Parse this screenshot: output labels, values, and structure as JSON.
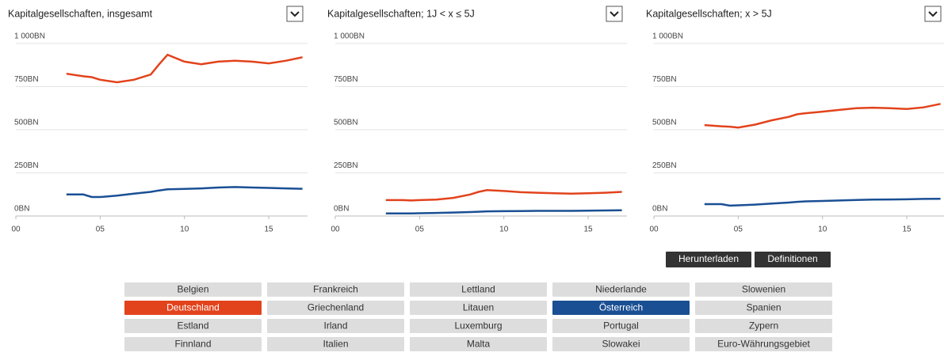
{
  "chart_data": [
    {
      "type": "line",
      "title": "Kapitalgesellschaften, insgesamt",
      "x": [
        2003,
        2004,
        2004.5,
        2005,
        2006,
        2007,
        2008,
        2008.5,
        2009,
        2010,
        2011,
        2012,
        2013,
        2014,
        2015,
        2016,
        2017
      ],
      "xlim": [
        2000,
        2017.3
      ],
      "xticks": [
        {
          "value": 2000,
          "label": "00"
        },
        {
          "value": 2005,
          "label": "05"
        },
        {
          "value": 2010,
          "label": "10"
        },
        {
          "value": 2015,
          "label": "15"
        }
      ],
      "ylim": [
        0,
        1000
      ],
      "yticks": [
        {
          "value": 0,
          "label": "0BN"
        },
        {
          "value": 250,
          "label": "250BN"
        },
        {
          "value": 500,
          "label": "500BN"
        },
        {
          "value": 750,
          "label": "750BN"
        },
        {
          "value": 1000,
          "label": "1 000BN"
        }
      ],
      "grid": true,
      "series": [
        {
          "color": "#e2431c",
          "values": [
            825,
            810,
            805,
            790,
            775,
            790,
            820,
            880,
            935,
            895,
            880,
            895,
            900,
            895,
            885,
            900,
            920
          ]
        },
        {
          "color": "#1a4f94",
          "values": [
            125,
            125,
            110,
            110,
            118,
            130,
            140,
            148,
            155,
            157,
            160,
            165,
            168,
            165,
            163,
            160,
            158
          ]
        }
      ]
    },
    {
      "type": "line",
      "title": "Kapitalgesellschaften; 1J < x ≤ 5J",
      "x": [
        2003,
        2004,
        2004.5,
        2005,
        2006,
        2007,
        2008,
        2008.5,
        2009,
        2010,
        2011,
        2012,
        2013,
        2014,
        2015,
        2016,
        2017
      ],
      "xlim": [
        2000,
        2017.3
      ],
      "xticks": [
        {
          "value": 2000,
          "label": "00"
        },
        {
          "value": 2005,
          "label": "05"
        },
        {
          "value": 2010,
          "label": "10"
        },
        {
          "value": 2015,
          "label": "15"
        }
      ],
      "ylim": [
        0,
        1000
      ],
      "yticks": [
        {
          "value": 0,
          "label": "0BN"
        },
        {
          "value": 250,
          "label": "250BN"
        },
        {
          "value": 500,
          "label": "500BN"
        },
        {
          "value": 750,
          "label": "750BN"
        },
        {
          "value": 1000,
          "label": "1 000BN"
        }
      ],
      "grid": true,
      "series": [
        {
          "color": "#e2431c",
          "values": [
            92,
            92,
            90,
            92,
            95,
            105,
            125,
            140,
            150,
            145,
            138,
            135,
            132,
            130,
            132,
            135,
            140
          ]
        },
        {
          "color": "#1a4f94",
          "values": [
            15,
            15,
            15,
            16,
            18,
            20,
            23,
            25,
            27,
            28,
            29,
            30,
            30,
            30,
            31,
            32,
            33
          ]
        }
      ]
    },
    {
      "type": "line",
      "title": "Kapitalgesellschaften; x > 5J",
      "x": [
        2003,
        2004,
        2004.5,
        2005,
        2006,
        2007,
        2008,
        2008.5,
        2009,
        2010,
        2011,
        2012,
        2013,
        2014,
        2015,
        2016,
        2017
      ],
      "xlim": [
        2000,
        2017.3
      ],
      "xticks": [
        {
          "value": 2000,
          "label": "00"
        },
        {
          "value": 2005,
          "label": "05"
        },
        {
          "value": 2010,
          "label": "10"
        },
        {
          "value": 2015,
          "label": "15"
        }
      ],
      "ylim": [
        0,
        1000
      ],
      "yticks": [
        {
          "value": 0,
          "label": "0BN"
        },
        {
          "value": 250,
          "label": "250BN"
        },
        {
          "value": 500,
          "label": "500BN"
        },
        {
          "value": 750,
          "label": "750BN"
        },
        {
          "value": 1000,
          "label": "1 000BN"
        }
      ],
      "grid": true,
      "series": [
        {
          "color": "#e2431c",
          "values": [
            527,
            520,
            518,
            513,
            530,
            555,
            575,
            590,
            596,
            605,
            615,
            625,
            628,
            625,
            620,
            630,
            650
          ]
        },
        {
          "color": "#1a4f94",
          "values": [
            69,
            69,
            60,
            62,
            66,
            72,
            78,
            82,
            85,
            87,
            90,
            93,
            95,
            96,
            97,
            99,
            100
          ]
        }
      ]
    }
  ],
  "actions": [
    "Herunterladen",
    "Definitionen"
  ],
  "countries": [
    {
      "label": "Belgien"
    },
    {
      "label": "Deutschland",
      "color": "#e2431c"
    },
    {
      "label": "Estland"
    },
    {
      "label": "Finnland"
    },
    {
      "label": "Frankreich"
    },
    {
      "label": "Griechenland"
    },
    {
      "label": "Irland"
    },
    {
      "label": "Italien"
    },
    {
      "label": "Lettland"
    },
    {
      "label": "Litauen"
    },
    {
      "label": "Luxemburg"
    },
    {
      "label": "Malta"
    },
    {
      "label": "Niederlande"
    },
    {
      "label": "Österreich",
      "color": "#1a4f94"
    },
    {
      "label": "Portugal"
    },
    {
      "label": "Slowakei"
    },
    {
      "label": "Slowenien"
    },
    {
      "label": "Spanien"
    },
    {
      "label": "Zypern"
    },
    {
      "label": "Euro-Währungsgebiet"
    }
  ]
}
